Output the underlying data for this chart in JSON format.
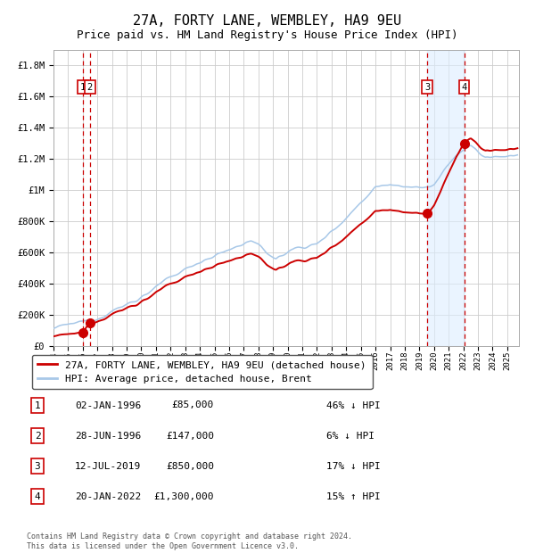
{
  "title": "27A, FORTY LANE, WEMBLEY, HA9 9EU",
  "subtitle": "Price paid vs. HM Land Registry's House Price Index (HPI)",
  "title_fontsize": 11,
  "subtitle_fontsize": 9,
  "hpi_color": "#a8c8e8",
  "price_color": "#cc0000",
  "background_color": "#ffffff",
  "grid_color": "#cccccc",
  "ylim": [
    0,
    1900000
  ],
  "xlim_start": 1994.0,
  "xlim_end": 2025.8,
  "yticks": [
    0,
    200000,
    400000,
    600000,
    800000,
    1000000,
    1200000,
    1400000,
    1600000,
    1800000
  ],
  "ytick_labels": [
    "£0",
    "£200K",
    "£400K",
    "£600K",
    "£800K",
    "£1M",
    "£1.2M",
    "£1.4M",
    "£1.6M",
    "£1.8M"
  ],
  "xticks": [
    1994,
    1995,
    1996,
    1997,
    1998,
    1999,
    2000,
    2001,
    2002,
    2003,
    2004,
    2005,
    2006,
    2007,
    2008,
    2009,
    2010,
    2011,
    2012,
    2013,
    2014,
    2015,
    2016,
    2017,
    2018,
    2019,
    2020,
    2021,
    2022,
    2023,
    2024,
    2025
  ],
  "sales": [
    {
      "num": 1,
      "date": "02-JAN-1996",
      "date_val": 1996.003,
      "price": 85000,
      "pct": "46%",
      "dir": "↓"
    },
    {
      "num": 2,
      "date": "28-JUN-1996",
      "date_val": 1996.49,
      "price": 147000,
      "pct": "6%",
      "dir": "↓"
    },
    {
      "num": 3,
      "date": "12-JUL-2019",
      "date_val": 2019.53,
      "price": 850000,
      "pct": "17%",
      "dir": "↓"
    },
    {
      "num": 4,
      "date": "20-JAN-2022",
      "date_val": 2022.055,
      "price": 1300000,
      "pct": "15%",
      "dir": "↑"
    }
  ],
  "shade_start": 2019.53,
  "shade_end": 2022.055,
  "hatch_end": 1995.3,
  "legend_entries": [
    {
      "label": "27A, FORTY LANE, WEMBLEY, HA9 9EU (detached house)",
      "color": "#cc0000",
      "lw": 2
    },
    {
      "label": "HPI: Average price, detached house, Brent",
      "color": "#a8c8e8",
      "lw": 2
    }
  ],
  "table_rows": [
    [
      "1",
      "02-JAN-1996",
      "£85,000",
      "46% ↓ HPI"
    ],
    [
      "2",
      "28-JUN-1996",
      "£147,000",
      "6% ↓ HPI"
    ],
    [
      "3",
      "12-JUL-2019",
      "£850,000",
      "17% ↓ HPI"
    ],
    [
      "4",
      "20-JAN-2022",
      "£1,300,000",
      "15% ↑ HPI"
    ]
  ],
  "footer": "Contains HM Land Registry data © Crown copyright and database right 2024.\nThis data is licensed under the Open Government Licence v3.0."
}
